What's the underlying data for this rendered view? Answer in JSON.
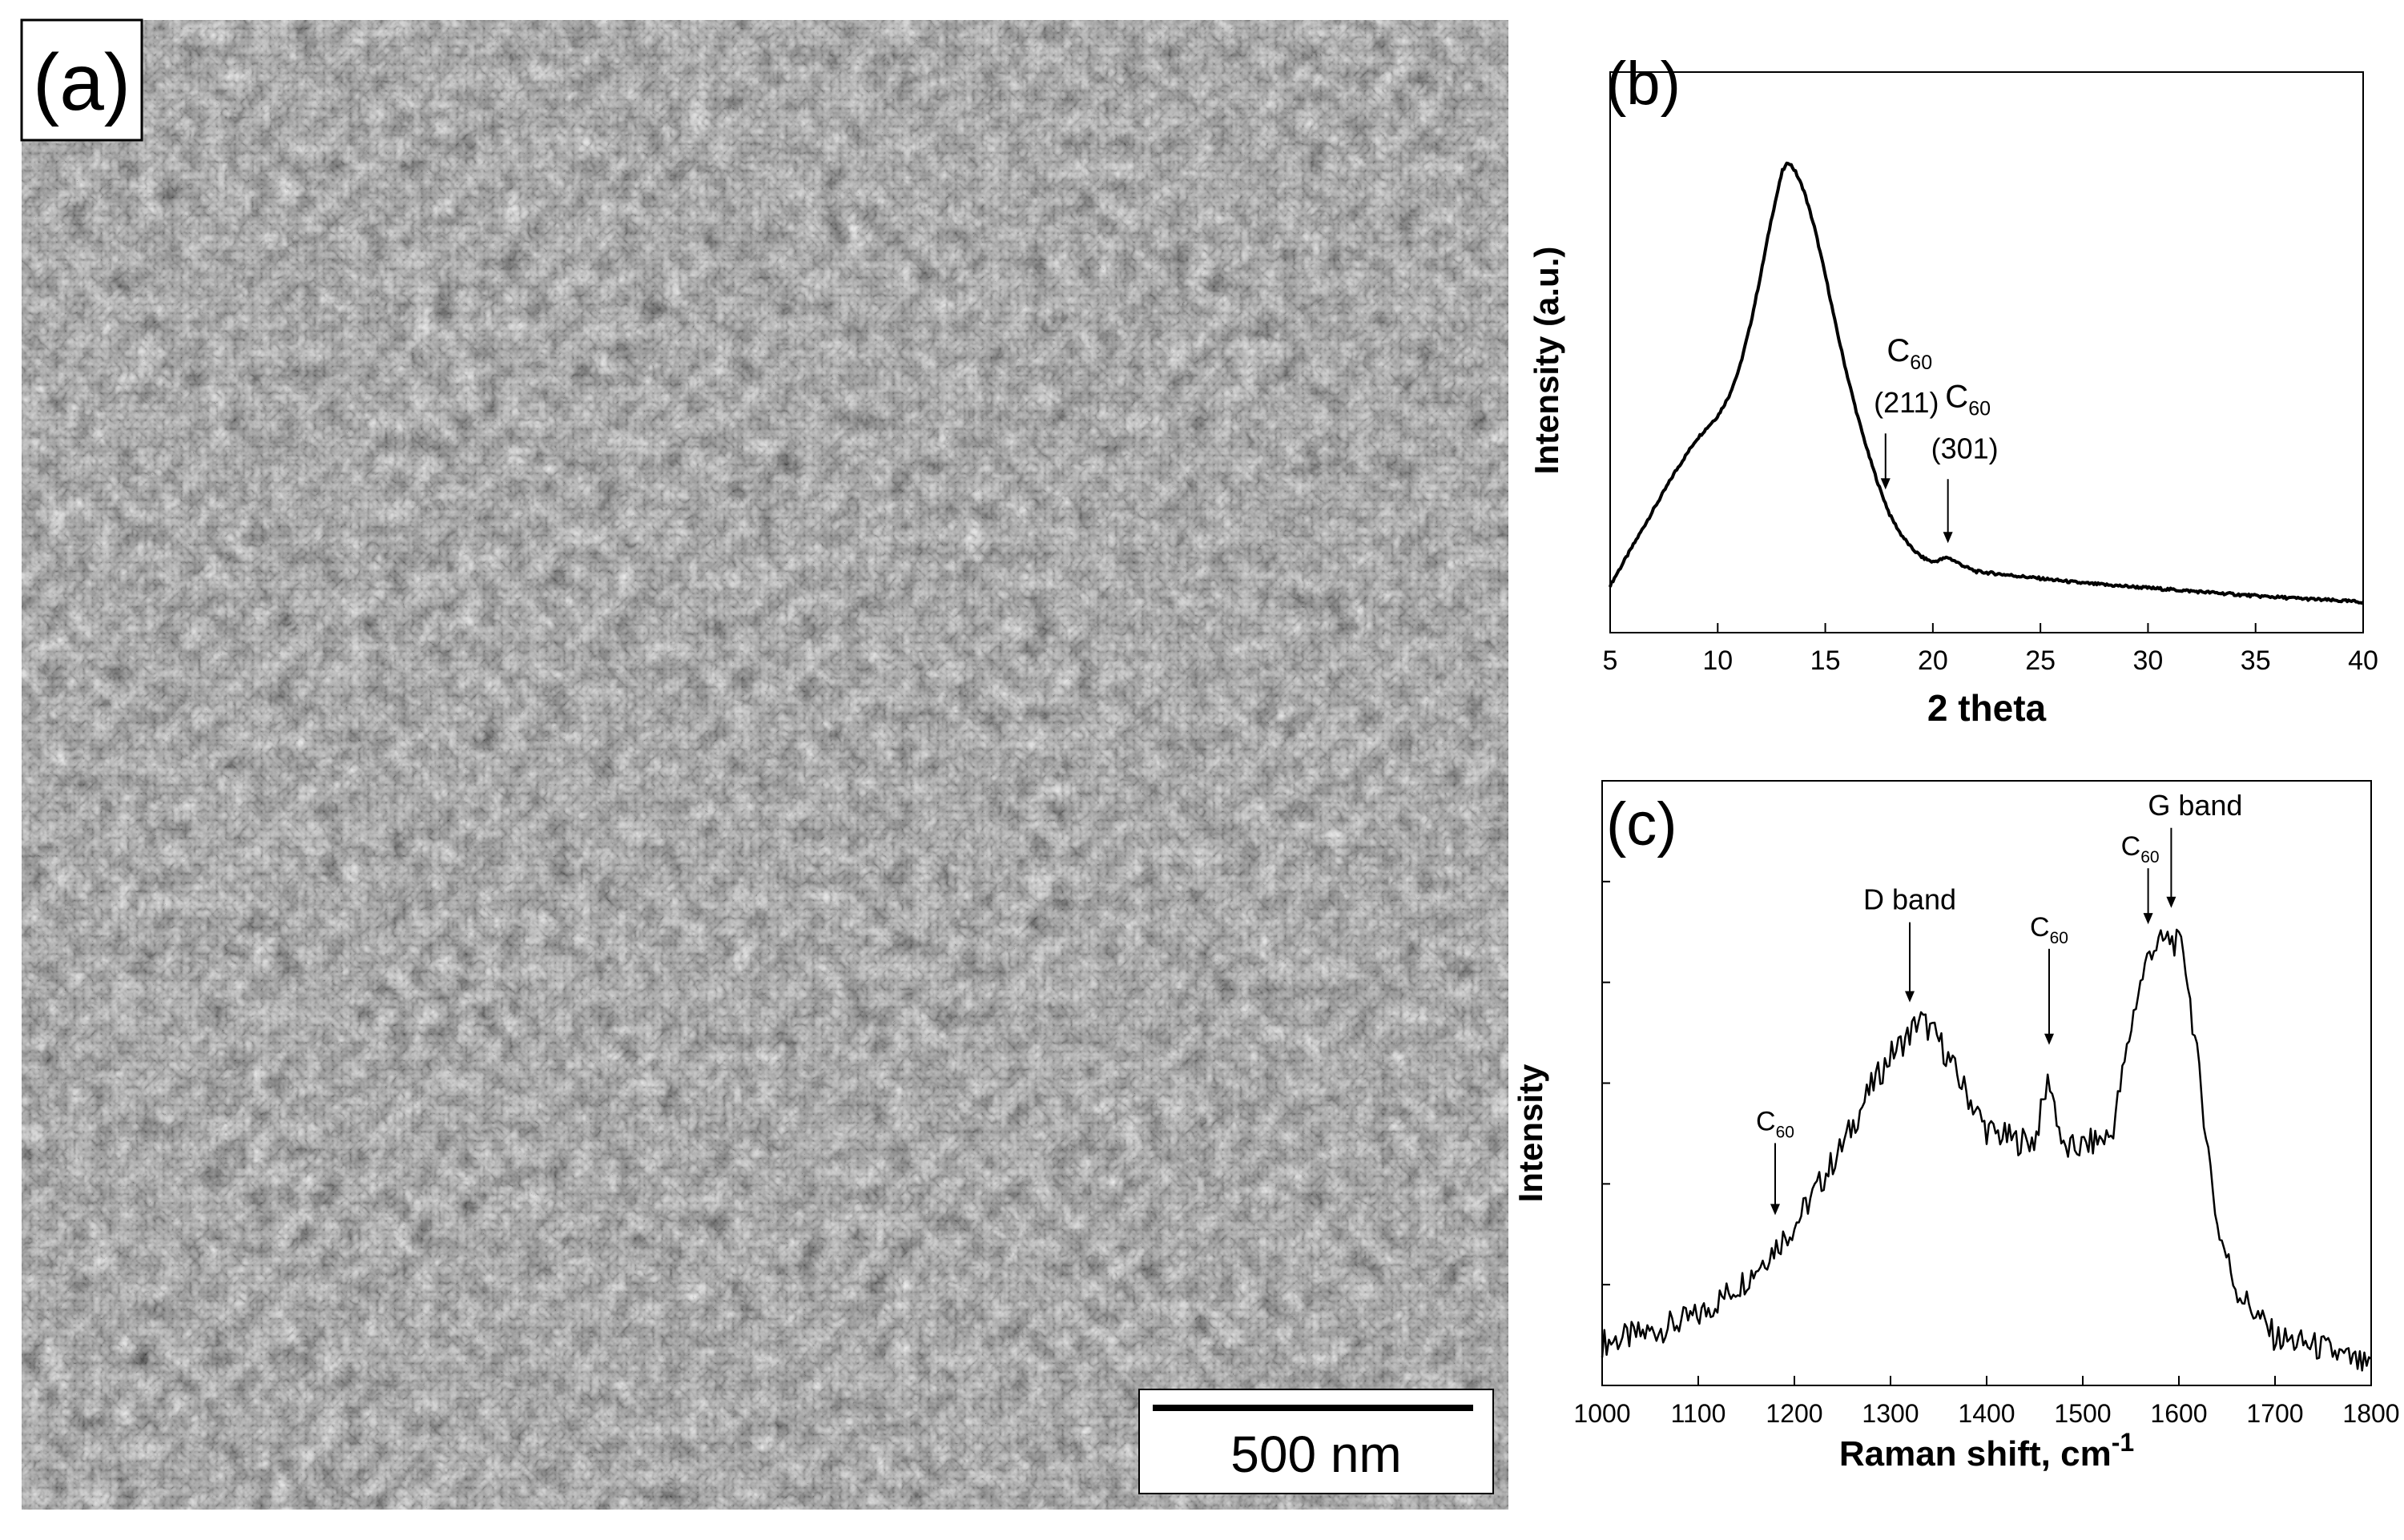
{
  "figure": {
    "panel_a": {
      "label": "(a)",
      "scale_bar": "500 nm"
    },
    "panel_b": {
      "label": "(b)",
      "annotations": [
        "C60",
        "(211)",
        "C60",
        "(301)"
      ]
    },
    "panel_c": {
      "label": "(c)",
      "annotations": [
        "C60",
        "D band",
        "C60",
        "C60",
        "G band"
      ]
    }
  },
  "chart_data": [
    {
      "type": "line",
      "panel": "(b)",
      "xlabel": "2 theta",
      "ylabel": "Intensity (a.u.)",
      "xlim": [
        5,
        40
      ],
      "xticks": [
        5,
        10,
        15,
        20,
        25,
        30,
        35,
        40
      ],
      "y_tick_labels": false,
      "series": [
        {
          "x": [
            5,
            6,
            7,
            8,
            9,
            10,
            10.5,
            11,
            11.5,
            12,
            12.5,
            13,
            13.3,
            13.6,
            14,
            14.5,
            15,
            15.5,
            16,
            16.5,
            17,
            17.5,
            18,
            18.5,
            19,
            19.5,
            20,
            20.7,
            21.5,
            22,
            23,
            25,
            27,
            30,
            33,
            35,
            38,
            40
          ],
          "y": [
            0.1,
            0.18,
            0.26,
            0.34,
            0.41,
            0.46,
            0.5,
            0.56,
            0.65,
            0.76,
            0.88,
            0.98,
            1.0,
            0.98,
            0.94,
            0.86,
            0.76,
            0.65,
            0.55,
            0.46,
            0.38,
            0.31,
            0.25,
            0.21,
            0.18,
            0.16,
            0.15,
            0.16,
            0.14,
            0.13,
            0.125,
            0.115,
            0.105,
            0.095,
            0.085,
            0.078,
            0.07,
            0.065
          ]
        }
      ],
      "annotations": [
        {
          "text": "C60",
          "sub": "(211)",
          "x": 17.8
        },
        {
          "text": "C60",
          "sub": "(301)",
          "x": 20.7
        }
      ]
    },
    {
      "type": "line",
      "panel": "(c)",
      "xlabel": "Raman shift, cm-1",
      "ylabel": "Intensity",
      "xlim": [
        1000,
        1800
      ],
      "xticks": [
        1000,
        1100,
        1200,
        1300,
        1400,
        1500,
        1600,
        1700,
        1800
      ],
      "y_tick_labels": false,
      "series": [
        {
          "x": [
            1000,
            1050,
            1100,
            1150,
            1180,
            1200,
            1250,
            1280,
            1300,
            1320,
            1330,
            1350,
            1370,
            1400,
            1430,
            1450,
            1465,
            1480,
            1500,
            1530,
            1555,
            1570,
            1590,
            1605,
            1620,
            1640,
            1660,
            1700,
            1750,
            1800
          ],
          "y": [
            0.08,
            0.1,
            0.13,
            0.2,
            0.26,
            0.3,
            0.45,
            0.56,
            0.62,
            0.66,
            0.69,
            0.65,
            0.58,
            0.48,
            0.46,
            0.46,
            0.58,
            0.44,
            0.45,
            0.47,
            0.72,
            0.82,
            0.84,
            0.82,
            0.6,
            0.3,
            0.18,
            0.09,
            0.07,
            0.03
          ]
        }
      ],
      "annotations": [
        {
          "text": "C60",
          "x": 1180
        },
        {
          "text": "D band",
          "x": 1320
        },
        {
          "text": "C60",
          "x": 1465
        },
        {
          "text": "C60",
          "x": 1568
        },
        {
          "text": "G band",
          "x": 1592
        }
      ]
    }
  ]
}
